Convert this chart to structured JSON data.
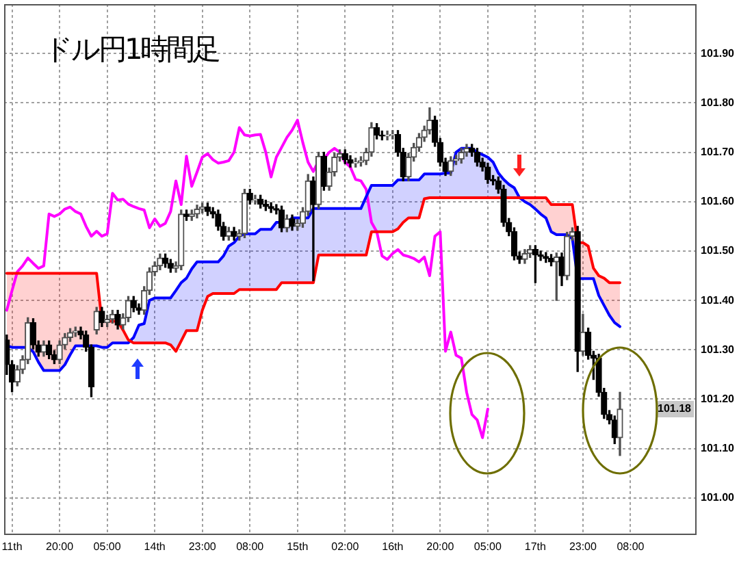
{
  "chart_data": {
    "type": "candlestick",
    "title": "ドル円1時間足",
    "categories": [
      null,
      "11th",
      null,
      null,
      null,
      null,
      null,
      null,
      null,
      null,
      "20:00",
      null,
      null,
      null,
      null,
      null,
      null,
      null,
      null,
      "05:00",
      null,
      null,
      null,
      null,
      null,
      null,
      null,
      null,
      "14th",
      null,
      null,
      null,
      null,
      null,
      null,
      null,
      null,
      "23:00",
      null,
      null,
      null,
      null,
      null,
      null,
      null,
      null,
      "08:00",
      null,
      null,
      null,
      null,
      null,
      null,
      null,
      null,
      "15th",
      null,
      null,
      null,
      null,
      null,
      null,
      null,
      null,
      "02:00",
      null,
      null,
      null,
      null,
      null,
      null,
      null,
      null,
      "16th",
      null,
      null,
      null,
      null,
      null,
      null,
      null,
      null,
      "20:00",
      null,
      null,
      null,
      null,
      null,
      null,
      null,
      null,
      "05:00",
      null,
      null,
      null,
      null,
      null,
      null,
      null,
      null,
      "17th",
      null,
      null,
      null,
      null,
      null,
      null,
      null,
      null,
      "23:00",
      null,
      null,
      null,
      null,
      null,
      null,
      null,
      null,
      "08:00",
      null,
      null,
      null,
      null,
      null,
      null,
      null,
      null,
      null,
      null,
      null,
      null
    ],
    "ohlc": [
      [
        101.32,
        101.33,
        101.25,
        101.27
      ],
      [
        101.27,
        101.278,
        101.215,
        101.235
      ],
      [
        101.235,
        101.268,
        101.227,
        101.26
      ],
      [
        101.26,
        101.288,
        101.252,
        101.28
      ],
      [
        101.28,
        101.365,
        101.272,
        101.355
      ],
      [
        101.355,
        101.363,
        101.302,
        101.31
      ],
      [
        101.31,
        101.318,
        101.287,
        101.295
      ],
      [
        101.295,
        101.318,
        101.287,
        101.31
      ],
      [
        101.31,
        101.318,
        101.282,
        101.29
      ],
      [
        101.29,
        101.298,
        101.272,
        101.28
      ],
      [
        101.28,
        101.318,
        101.272,
        101.31
      ],
      [
        101.31,
        101.333,
        101.302,
        101.325
      ],
      [
        101.325,
        101.343,
        101.317,
        101.335
      ],
      [
        101.335,
        101.346,
        101.327,
        101.338
      ],
      [
        101.338,
        101.346,
        101.322,
        101.33
      ],
      [
        101.33,
        101.338,
        101.297,
        101.305
      ],
      [
        101.305,
        101.31,
        101.205,
        101.225
      ],
      [
        101.34,
        101.386,
        101.332,
        101.378
      ],
      [
        101.378,
        101.386,
        101.347,
        101.355
      ],
      [
        101.355,
        101.37,
        101.347,
        101.362
      ],
      [
        101.362,
        101.38,
        101.354,
        101.372
      ],
      [
        101.372,
        101.38,
        101.342,
        101.35
      ],
      [
        101.35,
        101.373,
        101.342,
        101.365
      ],
      [
        101.365,
        101.408,
        101.357,
        101.4
      ],
      [
        101.4,
        101.408,
        101.377,
        101.385
      ],
      [
        101.385,
        101.393,
        101.372,
        101.38
      ],
      [
        101.38,
        101.428,
        101.372,
        101.42
      ],
      [
        101.42,
        101.466,
        101.412,
        101.458
      ],
      [
        101.458,
        101.478,
        101.45,
        101.47
      ],
      [
        101.47,
        101.494,
        101.462,
        101.486
      ],
      [
        101.486,
        101.494,
        101.467,
        101.475
      ],
      [
        101.475,
        101.483,
        101.457,
        101.465
      ],
      [
        101.465,
        101.478,
        101.457,
        101.47
      ],
      [
        101.47,
        101.583,
        101.462,
        101.575
      ],
      [
        101.575,
        101.583,
        101.562,
        101.57
      ],
      [
        101.57,
        101.583,
        101.562,
        101.575
      ],
      [
        101.575,
        101.593,
        101.567,
        101.585
      ],
      [
        101.585,
        101.597,
        101.577,
        101.589
      ],
      [
        101.589,
        101.597,
        101.572,
        101.58
      ],
      [
        101.58,
        101.588,
        101.567,
        101.575
      ],
      [
        101.575,
        101.583,
        101.542,
        101.55
      ],
      [
        101.55,
        101.558,
        101.522,
        101.53
      ],
      [
        101.53,
        101.548,
        101.522,
        101.54
      ],
      [
        101.54,
        101.548,
        101.522,
        101.53
      ],
      [
        101.53,
        101.543,
        101.522,
        101.535
      ],
      [
        101.535,
        101.625,
        101.527,
        101.617
      ],
      [
        101.617,
        101.625,
        101.595,
        101.603
      ],
      [
        101.603,
        101.613,
        101.595,
        101.605
      ],
      [
        101.605,
        101.613,
        101.587,
        101.595
      ],
      [
        101.595,
        101.603,
        101.582,
        101.59
      ],
      [
        101.59,
        101.598,
        101.578,
        101.586
      ],
      [
        101.586,
        101.594,
        101.575,
        101.583
      ],
      [
        101.583,
        101.591,
        101.539,
        101.547
      ],
      [
        101.547,
        101.573,
        101.539,
        101.565
      ],
      [
        101.565,
        101.573,
        101.542,
        101.55
      ],
      [
        101.55,
        101.564,
        101.542,
        101.556
      ],
      [
        101.556,
        101.588,
        101.548,
        101.58
      ],
      [
        101.58,
        101.655,
        101.572,
        101.642
      ],
      [
        101.642,
        101.65,
        101.44,
        101.594
      ],
      [
        101.594,
        101.7,
        101.586,
        101.692
      ],
      [
        101.692,
        101.7,
        101.623,
        101.631
      ],
      [
        101.631,
        101.668,
        101.623,
        101.66
      ],
      [
        101.66,
        101.698,
        101.652,
        101.69
      ],
      [
        101.69,
        101.705,
        101.682,
        101.697
      ],
      [
        101.697,
        101.705,
        101.677,
        101.685
      ],
      [
        101.685,
        101.693,
        101.67,
        101.678
      ],
      [
        101.678,
        101.688,
        101.67,
        101.68
      ],
      [
        101.68,
        101.691,
        101.672,
        101.683
      ],
      [
        101.683,
        101.708,
        101.675,
        101.7
      ],
      [
        101.7,
        101.76,
        101.692,
        101.75
      ],
      [
        101.75,
        101.758,
        101.727,
        101.735
      ],
      [
        101.735,
        101.743,
        101.725,
        101.733
      ],
      [
        101.733,
        101.743,
        101.725,
        101.735
      ],
      [
        101.735,
        101.744,
        101.727,
        101.736
      ],
      [
        101.736,
        101.744,
        101.692,
        101.7
      ],
      [
        101.7,
        101.708,
        101.642,
        101.65
      ],
      [
        101.65,
        101.698,
        101.642,
        101.69
      ],
      [
        101.69,
        101.718,
        101.682,
        101.71
      ],
      [
        101.71,
        101.738,
        101.702,
        101.73
      ],
      [
        101.73,
        101.753,
        101.722,
        101.745
      ],
      [
        101.745,
        101.79,
        101.737,
        101.765
      ],
      [
        101.765,
        101.773,
        101.712,
        101.72
      ],
      [
        101.72,
        101.728,
        101.672,
        101.68
      ],
      [
        101.68,
        101.688,
        101.653,
        101.661
      ],
      [
        101.661,
        101.691,
        101.653,
        101.683
      ],
      [
        101.683,
        101.694,
        101.675,
        101.686
      ],
      [
        101.686,
        101.708,
        101.678,
        101.7
      ],
      [
        101.7,
        101.716,
        101.692,
        101.708
      ],
      [
        101.708,
        101.716,
        101.692,
        101.7
      ],
      [
        101.7,
        101.708,
        101.672,
        101.68
      ],
      [
        101.68,
        101.688,
        101.662,
        101.67
      ],
      [
        101.67,
        101.678,
        101.637,
        101.645
      ],
      [
        101.645,
        101.653,
        101.634,
        101.642
      ],
      [
        101.642,
        101.65,
        101.617,
        101.625
      ],
      [
        101.625,
        101.633,
        101.55,
        101.558
      ],
      [
        101.558,
        101.566,
        101.531,
        101.539
      ],
      [
        101.539,
        101.547,
        101.482,
        101.49
      ],
      [
        101.49,
        101.498,
        101.475,
        101.483
      ],
      [
        101.483,
        101.503,
        101.475,
        101.495
      ],
      [
        101.495,
        101.511,
        101.487,
        101.503
      ],
      [
        101.503,
        101.511,
        101.436,
        101.492
      ],
      [
        101.492,
        101.5,
        101.481,
        101.489
      ],
      [
        101.489,
        101.497,
        101.477,
        101.485
      ],
      [
        101.485,
        101.493,
        101.47,
        101.478
      ],
      [
        101.478,
        101.496,
        101.4,
        101.488
      ],
      [
        101.488,
        101.496,
        101.43,
        101.45
      ],
      [
        101.45,
        101.538,
        101.442,
        101.53
      ],
      [
        101.53,
        101.547,
        101.522,
        101.539
      ],
      [
        101.539,
        101.55,
        101.256,
        101.297
      ],
      [
        101.297,
        101.372,
        101.289,
        101.336
      ],
      [
        101.336,
        101.344,
        101.281,
        101.289
      ],
      [
        101.289,
        101.297,
        101.24,
        101.283
      ],
      [
        101.283,
        101.291,
        101.206,
        101.214
      ],
      [
        101.214,
        101.222,
        101.161,
        101.169
      ],
      [
        101.169,
        101.177,
        101.15,
        101.158
      ],
      [
        101.158,
        101.166,
        101.11,
        101.122
      ],
      [
        101.122,
        101.214,
        101.086,
        101.18
      ],
      null,
      null,
      null,
      null,
      null,
      null,
      null,
      null,
      null,
      null,
      null,
      null,
      null,
      null
    ],
    "colors": [
      "#000000",
      "#000000",
      "#505050",
      "#505050",
      "#505050",
      "#000000",
      "#000000",
      "#505050",
      "#000000",
      "#000000",
      "#505050",
      "#505050",
      "#505050",
      "#505050",
      "#000000",
      "#000000",
      "#000000",
      "#505050",
      "#000000",
      "#505050",
      "#505050",
      "#000000",
      "#505050",
      "#505050",
      "#000000",
      "#000000",
      "#505050",
      "#505050",
      "#505050",
      "#505050",
      "#000000",
      "#000000",
      "#505050",
      "#505050",
      "#000000",
      "#505050",
      "#505050",
      "#505050",
      "#000000",
      "#000000",
      "#000000",
      "#000000",
      "#505050",
      "#000000",
      "#505050",
      "#505050",
      "#000000",
      "#505050",
      "#000000",
      "#000000",
      "#000000",
      "#000000",
      "#000000",
      "#505050",
      "#000000",
      "#505050",
      "#505050",
      "#505050",
      "#000000",
      "#505050",
      "#000000",
      "#505050",
      "#505050",
      "#505050",
      "#000000",
      "#000000",
      "#505050",
      "#505050",
      "#505050",
      "#505050",
      "#000000",
      "#000000",
      "#505050",
      "#505050",
      "#000000",
      "#000000",
      "#505050",
      "#505050",
      "#505050",
      "#505050",
      "#505050",
      "#000000",
      "#000000",
      "#000000",
      "#505050",
      "#505050",
      "#505050",
      "#505050",
      "#000000",
      "#000000",
      "#000000",
      "#000000",
      "#000000",
      "#000000",
      "#000000",
      "#000000",
      "#000000",
      "#000000",
      "#505050",
      "#505050",
      "#000000",
      "#000000",
      "#000000",
      "#000000",
      "#505050",
      "#000000",
      "#505050",
      "#505050",
      "#000000",
      "#505050",
      "#000000",
      "#000000",
      "#000000",
      "#000000",
      "#000000",
      "#000000",
      "#505050",
      null,
      null,
      null,
      null,
      null,
      null,
      null,
      null,
      null,
      null,
      null,
      null,
      null,
      null
    ],
    "series": [
      {
        "type": "line",
        "color": "#ff0000",
        "values": [
          101.455,
          101.455,
          101.455,
          101.455,
          101.455,
          101.455,
          101.455,
          101.455,
          101.455,
          101.455,
          101.455,
          101.455,
          101.455,
          101.455,
          101.455,
          101.455,
          101.455,
          101.455,
          101.358,
          101.358,
          101.358,
          101.358,
          101.34,
          101.32,
          101.314,
          101.314,
          101.314,
          101.314,
          101.314,
          101.314,
          101.314,
          101.31,
          101.297,
          101.318,
          101.339,
          101.339,
          101.339,
          101.38,
          101.408,
          101.414,
          101.414,
          101.414,
          101.414,
          101.414,
          101.422,
          101.422,
          101.422,
          101.422,
          101.422,
          101.422,
          101.422,
          101.422,
          101.436,
          101.436,
          101.436,
          101.436,
          101.436,
          101.436,
          101.436,
          101.492,
          101.492,
          101.492,
          101.492,
          101.492,
          101.492,
          101.492,
          101.492,
          101.492,
          101.492,
          101.539,
          101.539,
          101.539,
          101.539,
          101.539,
          101.545,
          101.558,
          101.567,
          101.567,
          101.567,
          101.606,
          101.608,
          101.608,
          101.608,
          101.608,
          101.608,
          101.608,
          101.608,
          101.608,
          101.608,
          101.608,
          101.608,
          101.608,
          101.608,
          101.608,
          101.608,
          101.608,
          101.608,
          101.608,
          101.608,
          101.608,
          101.608,
          101.608,
          101.608,
          101.594,
          101.594,
          101.594,
          101.594,
          101.594,
          101.517,
          101.517,
          101.51,
          101.465,
          101.45,
          101.445,
          101.436,
          101.436,
          101.436,
          null,
          null,
          null,
          null,
          null,
          null,
          null,
          null,
          null,
          null,
          null,
          null,
          null,
          null
        ],
        "upper": [
          101.455,
          101.455,
          101.455,
          101.455,
          101.455,
          101.455,
          101.455,
          101.455,
          101.455,
          101.455,
          101.455,
          101.455,
          101.455,
          101.455,
          101.455,
          101.455,
          101.455,
          101.455,
          101.358,
          101.358,
          101.358,
          101.358,
          101.34,
          101.32,
          null,
          null,
          null,
          null,
          null,
          null,
          null,
          null,
          null,
          null,
          null,
          null,
          null,
          null,
          null,
          null,
          null,
          null,
          null,
          null,
          null,
          null,
          null,
          null,
          null,
          null,
          null,
          null,
          null,
          null,
          null,
          null,
          null,
          null,
          null,
          null,
          null,
          null,
          null,
          null,
          null,
          null,
          null,
          null,
          null,
          null,
          null,
          null,
          null,
          null,
          null,
          null,
          null,
          null,
          null,
          null,
          null,
          null,
          null,
          null,
          null,
          null,
          null,
          null,
          null,
          null,
          null,
          null,
          null,
          null,
          null,
          null,
          null,
          101.608,
          101.608,
          101.608,
          101.608,
          101.608,
          101.608,
          101.594,
          101.594,
          101.594,
          101.594,
          101.594,
          101.517,
          101.517,
          101.51,
          101.465,
          101.45,
          101.445,
          101.436,
          101.436,
          101.436,
          null,
          null,
          null,
          null,
          null,
          null,
          null,
          null,
          null,
          null,
          null,
          null,
          null,
          null
        ],
        "lower": [
          101.308,
          101.305,
          101.305,
          101.305,
          101.305,
          101.296,
          101.275,
          101.258,
          101.258,
          101.258,
          101.258,
          101.27,
          101.29,
          101.308,
          101.308,
          101.308,
          101.308,
          101.308,
          101.305,
          101.305,
          101.314,
          101.314,
          101.314,
          101.314,
          null,
          null,
          null,
          null,
          null,
          null,
          null,
          null,
          null,
          null,
          null,
          null,
          null,
          null,
          null,
          null,
          null,
          null,
          null,
          null,
          null,
          null,
          null,
          null,
          null,
          null,
          null,
          null,
          null,
          null,
          null,
          null,
          null,
          null,
          null,
          null,
          null,
          null,
          null,
          null,
          null,
          null,
          null,
          null,
          null,
          null,
          null,
          null,
          null,
          null,
          null,
          null,
          null,
          null,
          null,
          null,
          null,
          null,
          null,
          null,
          null,
          null,
          null,
          null,
          null,
          null,
          null,
          null,
          null,
          null,
          null,
          null,
          null,
          101.608,
          101.6,
          101.594,
          101.585,
          101.575,
          101.567,
          101.539,
          101.533,
          101.533,
          101.533,
          101.525,
          101.444,
          101.444,
          101.444,
          101.444,
          101.41,
          101.39,
          101.37,
          101.355,
          101.347,
          null,
          null,
          null,
          null,
          null,
          null,
          null,
          null,
          null,
          null,
          null,
          null,
          null,
          null
        ]
      },
      {
        "type": "line",
        "color": "#0000ff",
        "values": [
          101.308,
          101.305,
          101.305,
          101.305,
          101.305,
          101.296,
          101.275,
          101.258,
          101.258,
          101.258,
          101.258,
          101.27,
          101.29,
          101.308,
          101.308,
          101.308,
          101.308,
          101.308,
          101.305,
          101.305,
          101.314,
          101.314,
          101.314,
          101.314,
          101.325,
          101.35,
          101.353,
          101.4,
          101.405,
          101.405,
          101.405,
          101.405,
          101.42,
          101.436,
          101.445,
          101.464,
          101.478,
          101.478,
          101.478,
          101.478,
          101.478,
          101.49,
          101.51,
          101.517,
          101.53,
          101.535,
          101.535,
          101.535,
          101.544,
          101.544,
          101.544,
          101.558,
          101.558,
          101.558,
          101.567,
          101.567,
          101.567,
          101.567,
          101.586,
          101.586,
          101.586,
          101.586,
          101.586,
          101.586,
          101.586,
          101.586,
          101.586,
          101.586,
          101.61,
          101.633,
          101.633,
          101.633,
          101.633,
          101.633,
          101.644,
          101.644,
          101.644,
          101.644,
          101.644,
          101.656,
          101.656,
          101.656,
          101.656,
          101.658,
          101.658,
          101.7,
          101.708,
          101.708,
          101.708,
          101.7,
          101.695,
          101.69,
          101.68,
          101.658,
          101.645,
          101.635,
          101.628,
          101.608,
          101.6,
          101.594,
          101.585,
          101.575,
          101.567,
          101.539,
          101.533,
          101.533,
          101.533,
          101.525,
          101.444,
          101.444,
          101.444,
          101.444,
          101.41,
          101.39,
          101.37,
          101.355,
          101.347,
          null,
          null,
          null,
          null,
          null,
          null,
          null,
          null,
          null,
          null,
          null,
          null,
          null,
          null
        ],
        "upper": [
          null,
          null,
          null,
          null,
          null,
          null,
          null,
          null,
          null,
          null,
          null,
          null,
          null,
          null,
          null,
          null,
          null,
          null,
          null,
          null,
          null,
          null,
          null,
          null,
          101.325,
          101.35,
          101.353,
          101.4,
          101.405,
          101.405,
          101.405,
          101.405,
          101.42,
          101.436,
          101.445,
          101.464,
          101.478,
          101.478,
          101.478,
          101.478,
          101.478,
          101.49,
          101.51,
          101.517,
          101.53,
          101.535,
          101.535,
          101.535,
          101.544,
          101.544,
          101.544,
          101.558,
          101.558,
          101.558,
          101.567,
          101.567,
          101.567,
          101.567,
          101.586,
          101.586,
          101.586,
          101.586,
          101.586,
          101.586,
          101.586,
          101.586,
          101.586,
          101.586,
          101.61,
          101.633,
          101.633,
          101.633,
          101.633,
          101.633,
          101.644,
          101.644,
          101.644,
          101.644,
          101.644,
          101.656,
          101.656,
          101.656,
          101.656,
          101.658,
          101.658,
          101.7,
          101.708,
          101.708,
          101.708,
          101.7,
          101.695,
          101.69,
          101.68,
          101.658,
          101.645,
          101.635,
          101.628,
          101.608,
          null,
          null,
          null,
          null,
          null,
          null,
          null,
          null,
          null,
          null,
          null,
          null,
          null,
          null,
          null,
          null,
          null,
          null,
          null,
          null,
          null,
          null,
          null,
          null,
          null,
          null,
          null,
          null,
          null,
          null,
          null,
          null,
          null
        ],
        "lower": [
          null,
          null,
          null,
          null,
          null,
          null,
          null,
          null,
          null,
          null,
          null,
          null,
          null,
          null,
          null,
          null,
          null,
          null,
          null,
          null,
          null,
          null,
          null,
          null,
          101.314,
          101.314,
          101.314,
          101.314,
          101.314,
          101.314,
          101.314,
          101.31,
          101.297,
          101.318,
          101.339,
          101.339,
          101.339,
          101.38,
          101.408,
          101.414,
          101.414,
          101.414,
          101.414,
          101.414,
          101.422,
          101.422,
          101.422,
          101.422,
          101.422,
          101.422,
          101.422,
          101.422,
          101.436,
          101.436,
          101.436,
          101.436,
          101.436,
          101.436,
          101.436,
          101.492,
          101.492,
          101.492,
          101.492,
          101.492,
          101.492,
          101.492,
          101.492,
          101.492,
          101.492,
          101.539,
          101.539,
          101.539,
          101.539,
          101.539,
          101.545,
          101.558,
          101.567,
          101.567,
          101.567,
          101.606,
          101.608,
          101.608,
          101.608,
          101.608,
          101.608,
          101.608,
          101.608,
          101.608,
          101.608,
          101.608,
          101.608,
          101.608,
          101.608,
          101.608,
          101.608,
          101.608,
          101.608,
          101.608,
          null,
          null,
          null,
          null,
          null,
          null,
          null,
          null,
          null,
          null,
          null,
          null,
          null,
          null,
          null,
          null,
          null,
          null,
          null,
          null,
          null,
          null,
          null,
          null,
          null,
          null,
          null,
          null,
          null,
          null,
          null,
          null,
          null
        ]
      },
      {
        "type": "line",
        "color": "#ff00ff",
        "values": [
          101.38,
          101.42,
          101.458,
          101.47,
          101.486,
          101.475,
          101.465,
          101.47,
          101.575,
          101.57,
          101.575,
          101.585,
          101.589,
          101.58,
          101.575,
          101.55,
          101.53,
          101.54,
          101.53,
          101.535,
          101.617,
          101.603,
          101.605,
          101.595,
          101.59,
          101.586,
          101.583,
          101.547,
          101.565,
          101.55,
          101.556,
          101.58,
          101.642,
          101.594,
          101.692,
          101.631,
          101.66,
          101.69,
          101.697,
          101.685,
          101.678,
          101.68,
          101.683,
          101.7,
          101.75,
          101.735,
          101.733,
          101.735,
          101.736,
          101.7,
          101.65,
          101.69,
          101.71,
          101.73,
          101.745,
          101.765,
          101.72,
          101.68,
          101.661,
          101.683,
          101.686,
          101.7,
          101.708,
          101.7,
          101.68,
          101.67,
          101.645,
          101.642,
          101.625,
          101.558,
          101.539,
          101.49,
          101.483,
          101.495,
          101.503,
          101.492,
          101.489,
          101.485,
          101.478,
          101.488,
          101.45,
          101.53,
          101.539,
          101.297,
          101.336,
          101.289,
          101.283,
          101.214,
          101.169,
          101.158,
          101.122,
          101.18,
          null,
          null,
          null,
          null,
          null,
          null,
          null,
          null,
          null,
          null,
          null,
          null,
          null,
          null,
          null,
          null,
          null,
          null,
          null,
          null,
          null,
          null,
          null,
          null,
          null,
          null,
          null,
          null,
          null,
          null,
          null,
          null,
          null,
          null,
          null,
          null,
          null,
          null,
          null
        ]
      }
    ],
    "ylim": [
      100.925,
      102.0
    ],
    "yticks": [
      {
        "value": 101,
        "label": "101.00"
      },
      {
        "value": 101.1,
        "label": "101.10"
      },
      {
        "value": 101.2,
        "label": "101.20"
      },
      {
        "value": 101.3,
        "label": "101.30"
      },
      {
        "value": 101.4,
        "label": "101.40"
      },
      {
        "value": 101.5,
        "label": "101.50"
      },
      {
        "value": 101.6,
        "label": "101.60"
      },
      {
        "value": 101.7,
        "label": "101.70"
      },
      {
        "value": 101.8,
        "label": "101.80"
      },
      {
        "value": 101.9,
        "label": "101.90"
      }
    ],
    "grid": true,
    "annotations": [
      {
        "text": "101.18",
        "y": 101.18
      }
    ]
  }
}
